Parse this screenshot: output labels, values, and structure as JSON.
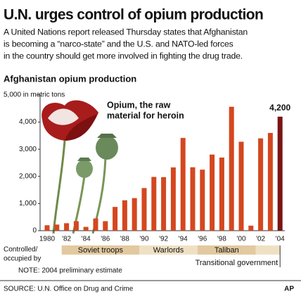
{
  "header": {
    "title": "U.N. urges control of opium production",
    "description_lines": [
      "A United Nations report released Thursday states that Afghanistan",
      "is becoming a “narco-state” and the U.S. and NATO-led forces",
      "in the country should get more involved in fighting the drug trade."
    ]
  },
  "chart_data": {
    "type": "bar",
    "title": "Afghanistan opium production",
    "categories": [
      "1980",
      null,
      "'82",
      null,
      "'84",
      null,
      "'86",
      null,
      "'88",
      null,
      "'90",
      null,
      "'92",
      null,
      "'94",
      null,
      "'96",
      null,
      "'98",
      null,
      "'00",
      null,
      "'02",
      null,
      "'04"
    ],
    "values": [
      200,
      225,
      275,
      349,
      140,
      450,
      350,
      875,
      1120,
      1200,
      1570,
      1980,
      1970,
      2330,
      3416,
      2335,
      2248,
      2804,
      2693,
      4565,
      3276,
      185,
      3400,
      3600,
      4200
    ],
    "value_labels": [
      null,
      null,
      null,
      null,
      null,
      null,
      null,
      null,
      null,
      null,
      null,
      null,
      null,
      null,
      null,
      null,
      null,
      null,
      null,
      null,
      null,
      null,
      null,
      null,
      "4,200"
    ],
    "colors": [
      "#d4471f",
      "#d4471f",
      "#d4471f",
      "#d4471f",
      "#d4471f",
      "#d4471f",
      "#d4471f",
      "#d4471f",
      "#d4471f",
      "#d4471f",
      "#d4471f",
      "#d4471f",
      "#d4471f",
      "#d4471f",
      "#d4471f",
      "#d4471f",
      "#d4471f",
      "#d4471f",
      "#d4471f",
      "#d4471f",
      "#d4471f",
      "#d4471f",
      "#d4471f",
      "#d4471f",
      "#7a1414"
    ],
    "ylim": [
      0,
      5000
    ],
    "yticks": [
      0,
      {
        "value": 1000,
        "label": "1,000"
      },
      {
        "value": 2000,
        "label": "2,000"
      },
      {
        "value": 3000,
        "label": "3,000"
      },
      {
        "value": 4000,
        "label": "4,000"
      },
      {
        "value": 5000,
        "label": "5,000 in metric tons"
      }
    ],
    "annotation_lines": [
      "Opium, the raw",
      "material for heroin"
    ],
    "periods_caption_lines": [
      "Controlled/",
      "occupied by"
    ],
    "periods": [
      {
        "label": "Soviet troops",
        "start": 1981.5,
        "end": 1989.5,
        "color": "#e2c9a0"
      },
      {
        "label": "Warlords",
        "start": 1989.5,
        "end": 1995.5,
        "color": "#efe0c4"
      },
      {
        "label": "Taliban",
        "start": 1995.5,
        "end": 2001.5,
        "color": "#e2c9a0"
      },
      {
        "label": "Transitional government",
        "start": 2001.5,
        "end": 2004,
        "color": "#efe0c4"
      }
    ],
    "note": "NOTE: 2004 preliminary estimate"
  },
  "footer": {
    "source": "SOURCE: U.N. Office on Drug and Crime",
    "credit": "AP"
  }
}
